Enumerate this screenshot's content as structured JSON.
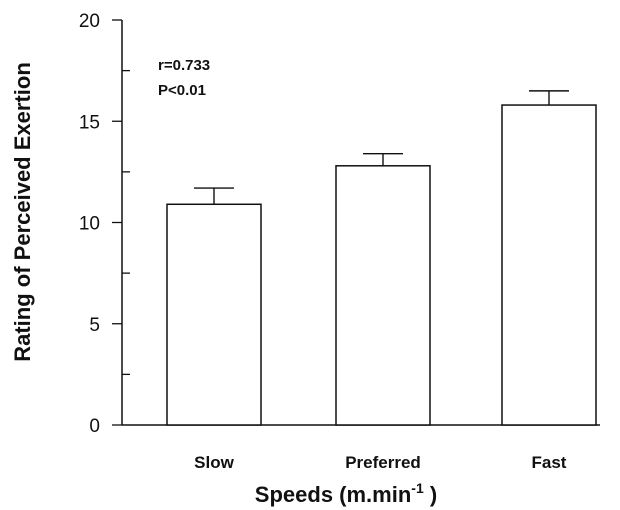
{
  "chart_data": {
    "type": "bar",
    "categories": [
      "Slow",
      "Preferred",
      "Fast"
    ],
    "values": [
      10.9,
      12.8,
      15.8
    ],
    "error": [
      0.8,
      0.6,
      0.7
    ],
    "xlabel_main": "Speeds (m.min",
    "xlabel_sup": "-1",
    "xlabel_end": " )",
    "ylabel": "Rating of Perceived Exertion",
    "ylim": [
      0,
      20
    ],
    "yticks": [
      "0",
      "5",
      "10",
      "15",
      "20"
    ],
    "annotations": [
      "r=0.733",
      "P<0.01"
    ],
    "grid": false,
    "legend": "none",
    "colors": {
      "bar_fill": "#ffffff",
      "stroke": "#111111"
    }
  }
}
